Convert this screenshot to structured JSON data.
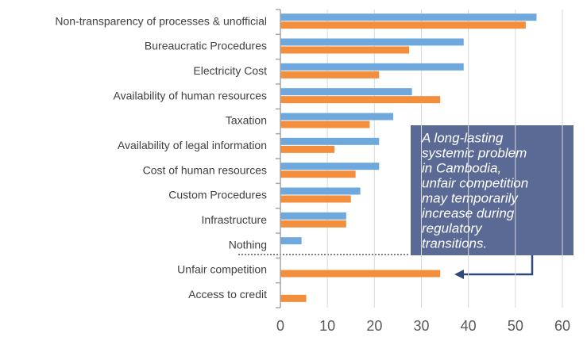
{
  "chart_data": {
    "type": "barh",
    "categories": [
      "Non-transparency of processes & unofficial",
      "Bureaucratic Procedures",
      "Electricity Cost",
      "Availability of human resources",
      "Taxation",
      "Availability of legal information",
      "Cost of human resources",
      "Custom Procedures",
      "Infrastructure",
      "Nothing",
      "Unfair competition",
      "Access to credit"
    ],
    "series": [
      {
        "color": "#6fa8dc",
        "values": [
          54.5,
          39,
          39,
          28,
          24,
          21,
          21,
          17,
          14,
          4.5,
          0,
          0
        ]
      },
      {
        "color": "#f28e3c",
        "values": [
          52.2,
          27.4,
          21,
          34,
          19,
          11.5,
          16,
          15,
          14,
          0,
          34,
          5.5
        ]
      }
    ],
    "xlim": [
      0,
      60
    ],
    "xticks": [
      0,
      10,
      20,
      30,
      40,
      50,
      60
    ],
    "grid": true,
    "annotation": [
      "A long-lasting",
      "systemic problem",
      "in Cambodia,",
      "unfair competition",
      "may temporarily",
      "increase during",
      "regulatory",
      "transitions."
    ]
  }
}
